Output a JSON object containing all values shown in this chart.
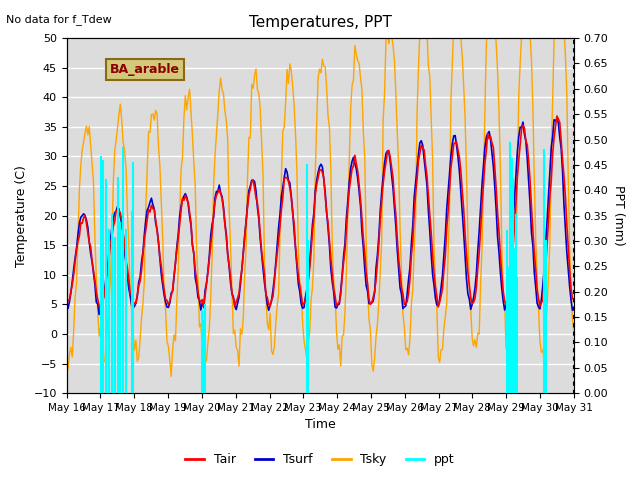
{
  "title": "Temperatures, PPT",
  "subtitle": "No data for f_Tdew",
  "site_label": "BA_arable",
  "xlabel": "Time",
  "ylabel_left": "Temperature (C)",
  "ylabel_right": "PPT (mm)",
  "ylim_left": [
    -10,
    50
  ],
  "ylim_right": [
    0.0,
    0.7
  ],
  "yticks_left": [
    -10,
    -5,
    0,
    5,
    10,
    15,
    20,
    25,
    30,
    35,
    40,
    45,
    50
  ],
  "yticks_right": [
    0.0,
    0.05,
    0.1,
    0.15,
    0.2,
    0.25,
    0.3,
    0.35,
    0.4,
    0.45,
    0.5,
    0.55,
    0.6,
    0.65,
    0.7
  ],
  "xtick_labels": [
    "May 16",
    "May 17",
    "May 18",
    "May 19",
    "May 20",
    "May 21",
    "May 22",
    "May 23",
    "May 24",
    "May 25",
    "May 26",
    "May 27",
    "May 28",
    "May 29",
    "May 30",
    "May 31"
  ],
  "colors": {
    "Tair": "#ff0000",
    "Tsurf": "#0000cc",
    "Tsky": "#ffa500",
    "ppt": "#00ffff"
  },
  "background_color": "#dcdcdc",
  "grid_color": "#ffffff",
  "fig_bg": "#ffffff",
  "n_days": 15,
  "hours_per_day": 24
}
